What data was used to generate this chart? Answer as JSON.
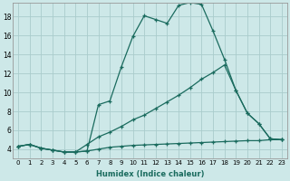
{
  "xlabel": "Humidex (Indice chaleur)",
  "bg_color": "#cde8e8",
  "grid_color": "#aacccc",
  "line_color": "#1a6b5e",
  "xlim": [
    -0.5,
    23.5
  ],
  "ylim": [
    3.0,
    19.5
  ],
  "xticks": [
    0,
    1,
    2,
    3,
    4,
    5,
    6,
    7,
    8,
    9,
    10,
    11,
    12,
    13,
    14,
    15,
    16,
    17,
    18,
    19,
    20,
    21,
    22,
    23
  ],
  "yticks": [
    4,
    6,
    8,
    10,
    12,
    14,
    16,
    18
  ],
  "line1_x": [
    0,
    1,
    2,
    3,
    4,
    5,
    6,
    7,
    8,
    9,
    10,
    11,
    12,
    13,
    14,
    15,
    16,
    17,
    18,
    19,
    20,
    21,
    22,
    23
  ],
  "line1_y": [
    4.3,
    4.5,
    4.1,
    3.9,
    3.7,
    3.7,
    3.8,
    8.7,
    9.1,
    12.7,
    15.9,
    18.1,
    17.7,
    17.3,
    19.2,
    19.5,
    19.3,
    16.5,
    13.5,
    10.2,
    7.8,
    6.7,
    5.1,
    5.0
  ],
  "line2_x": [
    0,
    1,
    2,
    3,
    4,
    5,
    6,
    7,
    8,
    9,
    10,
    11,
    12,
    13,
    14,
    15,
    16,
    17,
    18,
    19,
    20,
    21,
    22,
    23
  ],
  "line2_y": [
    4.3,
    4.5,
    4.1,
    3.9,
    3.7,
    3.7,
    4.5,
    5.3,
    5.8,
    6.4,
    7.1,
    7.6,
    8.3,
    9.0,
    9.7,
    10.5,
    11.4,
    12.1,
    12.9,
    10.2,
    7.8,
    6.7,
    5.1,
    5.0
  ],
  "line3_x": [
    0,
    1,
    2,
    3,
    4,
    5,
    6,
    7,
    8,
    9,
    10,
    11,
    12,
    13,
    14,
    15,
    16,
    17,
    18,
    19,
    20,
    21,
    22,
    23
  ],
  "line3_y": [
    4.3,
    4.5,
    4.1,
    3.9,
    3.7,
    3.7,
    3.8,
    4.0,
    4.2,
    4.3,
    4.4,
    4.45,
    4.5,
    4.55,
    4.6,
    4.65,
    4.7,
    4.75,
    4.8,
    4.85,
    4.9,
    4.9,
    5.0,
    5.0
  ]
}
